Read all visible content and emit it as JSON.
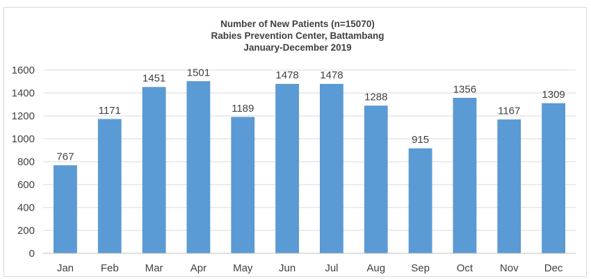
{
  "chart_data": {
    "type": "bar",
    "title": [
      "Number of New Patients (n=15070)",
      "Rabies Prevention Center, Battambang",
      "January-December 2019"
    ],
    "categories": [
      "Jan",
      "Feb",
      "Mar",
      "Apr",
      "May",
      "Jun",
      "Jul",
      "Aug",
      "Sep",
      "Oct",
      "Nov",
      "Dec"
    ],
    "values": [
      767,
      1171,
      1451,
      1501,
      1189,
      1478,
      1478,
      1288,
      915,
      1356,
      1167,
      1309
    ],
    "ylim": [
      0,
      1600
    ],
    "yticks": [
      0,
      200,
      400,
      600,
      800,
      1000,
      1200,
      1400,
      1600
    ],
    "grid": true,
    "legend": "none",
    "xlabel": "",
    "ylabel": "",
    "colors": {
      "bar": "#5b9bd5",
      "bar_edge": "#4a8ac6"
    }
  }
}
